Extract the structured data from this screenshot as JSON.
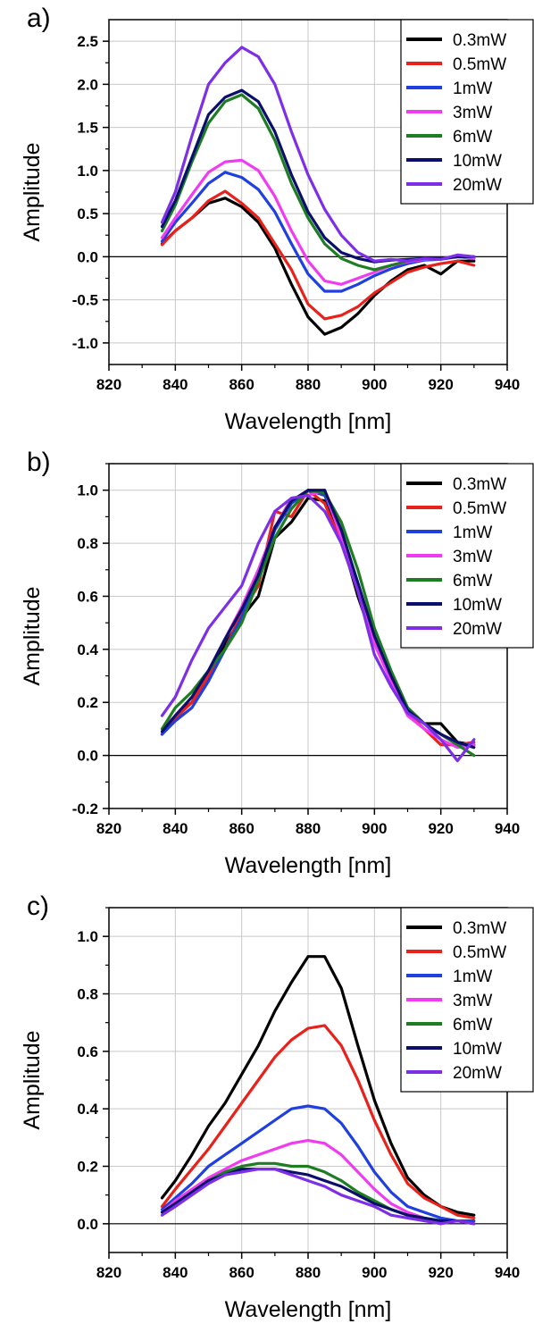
{
  "legend_labels": [
    "0.3mW",
    "0.5mW",
    "1mW",
    "3mW",
    "6mW",
    "10mW",
    "20mW"
  ],
  "series_colors": [
    "#000000",
    "#e8211b",
    "#1f3fe0",
    "#f03cf0",
    "#1e7d22",
    "#0b0f6b",
    "#7d2fe8"
  ],
  "chart_data": [
    {
      "type": "line",
      "panel_label": "a)",
      "xlabel": "Wavelength [nm]",
      "ylabel": "Amplitude",
      "xlim": [
        820,
        940
      ],
      "ylim": [
        -1.25,
        2.75
      ],
      "xticks": [
        820,
        840,
        860,
        880,
        900,
        920,
        940
      ],
      "yticks": [
        -1.0,
        -0.5,
        0.0,
        0.5,
        1.0,
        1.5,
        2.0,
        2.5
      ],
      "ytick_labels": [
        "-1.0",
        "-0.5",
        "0.0",
        "0.5",
        "1.0",
        "1.5",
        "2.0",
        "2.5"
      ],
      "grid": true,
      "legend_position": "top-right",
      "x": [
        836,
        840,
        845,
        850,
        855,
        860,
        865,
        870,
        875,
        880,
        885,
        890,
        895,
        900,
        905,
        910,
        915,
        920,
        925,
        930
      ],
      "series": [
        {
          "name": "0.3mW",
          "color": "#000000",
          "values": [
            0.15,
            0.3,
            0.45,
            0.62,
            0.68,
            0.58,
            0.4,
            0.1,
            -0.32,
            -0.7,
            -0.9,
            -0.82,
            -0.66,
            -0.45,
            -0.28,
            -0.15,
            -0.1,
            -0.2,
            -0.05,
            -0.05
          ]
        },
        {
          "name": "0.5mW",
          "color": "#e8211b",
          "values": [
            0.14,
            0.3,
            0.45,
            0.65,
            0.76,
            0.62,
            0.45,
            0.15,
            -0.15,
            -0.55,
            -0.72,
            -0.68,
            -0.58,
            -0.42,
            -0.3,
            -0.18,
            -0.12,
            -0.08,
            -0.05,
            -0.1
          ]
        },
        {
          "name": "1mW",
          "color": "#1f3fe0",
          "values": [
            0.18,
            0.4,
            0.62,
            0.85,
            0.98,
            0.92,
            0.78,
            0.52,
            0.15,
            -0.2,
            -0.4,
            -0.4,
            -0.32,
            -0.22,
            -0.14,
            -0.08,
            -0.04,
            -0.03,
            0.0,
            -0.02
          ]
        },
        {
          "name": "3mW",
          "color": "#f03cf0",
          "values": [
            0.22,
            0.45,
            0.72,
            0.98,
            1.1,
            1.12,
            1.0,
            0.7,
            0.3,
            -0.05,
            -0.28,
            -0.32,
            -0.25,
            -0.18,
            -0.1,
            -0.06,
            -0.03,
            -0.02,
            0.0,
            -0.02
          ]
        },
        {
          "name": "6mW",
          "color": "#1e7d22",
          "values": [
            0.3,
            0.6,
            1.1,
            1.55,
            1.8,
            1.88,
            1.72,
            1.35,
            0.85,
            0.45,
            0.15,
            -0.02,
            -0.1,
            -0.15,
            -0.1,
            -0.05,
            -0.02,
            -0.02,
            0.0,
            0.0
          ]
        },
        {
          "name": "10mW",
          "color": "#0b0f6b",
          "values": [
            0.35,
            0.65,
            1.15,
            1.65,
            1.85,
            1.93,
            1.8,
            1.45,
            0.95,
            0.52,
            0.22,
            0.05,
            -0.02,
            -0.06,
            -0.04,
            -0.03,
            -0.02,
            -0.02,
            0.0,
            0.0
          ]
        },
        {
          "name": "20mW",
          "color": "#7d2fe8",
          "values": [
            0.4,
            0.75,
            1.4,
            2.0,
            2.25,
            2.43,
            2.32,
            2.0,
            1.45,
            0.95,
            0.55,
            0.25,
            0.05,
            -0.05,
            -0.03,
            -0.05,
            -0.02,
            -0.03,
            0.02,
            0.0
          ]
        }
      ]
    },
    {
      "type": "line",
      "panel_label": "b)",
      "xlabel": "Wavelength [nm]",
      "ylabel": "Amplitude",
      "xlim": [
        820,
        940
      ],
      "ylim": [
        -0.2,
        1.1
      ],
      "xticks": [
        820,
        840,
        860,
        880,
        900,
        920,
        940
      ],
      "yticks": [
        -0.2,
        0.0,
        0.2,
        0.4,
        0.6,
        0.8,
        1.0
      ],
      "ytick_labels": [
        "-0.2",
        "0.0",
        "0.2",
        "0.4",
        "0.6",
        "0.8",
        "1.0"
      ],
      "grid": true,
      "legend_position": "top-right",
      "x": [
        836,
        840,
        845,
        850,
        855,
        860,
        865,
        870,
        875,
        880,
        885,
        890,
        895,
        900,
        905,
        910,
        915,
        920,
        925,
        930
      ],
      "series": [
        {
          "name": "0.3mW",
          "color": "#000000",
          "values": [
            0.08,
            0.15,
            0.2,
            0.3,
            0.42,
            0.52,
            0.6,
            0.82,
            0.88,
            0.97,
            0.96,
            0.82,
            0.6,
            0.42,
            0.3,
            0.16,
            0.12,
            0.12,
            0.05,
            0.04
          ]
        },
        {
          "name": "0.5mW",
          "color": "#e8211b",
          "values": [
            0.08,
            0.14,
            0.2,
            0.3,
            0.4,
            0.54,
            0.64,
            0.92,
            0.9,
            1.0,
            0.95,
            0.8,
            0.62,
            0.44,
            0.28,
            0.16,
            0.1,
            0.04,
            0.04,
            0.05
          ]
        },
        {
          "name": "1mW",
          "color": "#1f3fe0",
          "values": [
            0.08,
            0.13,
            0.18,
            0.28,
            0.4,
            0.52,
            0.68,
            0.85,
            0.95,
            1.0,
            0.98,
            0.84,
            0.65,
            0.45,
            0.3,
            0.18,
            0.12,
            0.08,
            0.04,
            0.04
          ]
        },
        {
          "name": "3mW",
          "color": "#f03cf0",
          "values": [
            0.1,
            0.15,
            0.22,
            0.32,
            0.44,
            0.56,
            0.7,
            0.86,
            0.97,
            0.98,
            1.0,
            0.82,
            0.62,
            0.42,
            0.28,
            0.15,
            0.1,
            0.06,
            0.03,
            0.04
          ]
        },
        {
          "name": "6mW",
          "color": "#1e7d22",
          "values": [
            0.1,
            0.18,
            0.24,
            0.32,
            0.4,
            0.5,
            0.66,
            0.82,
            0.93,
            1.0,
            0.99,
            0.88,
            0.7,
            0.48,
            0.32,
            0.18,
            0.12,
            0.08,
            0.04,
            0.0
          ]
        },
        {
          "name": "10mW",
          "color": "#0b0f6b",
          "values": [
            0.09,
            0.15,
            0.22,
            0.32,
            0.44,
            0.55,
            0.68,
            0.86,
            0.96,
            1.0,
            1.0,
            0.85,
            0.65,
            0.45,
            0.3,
            0.17,
            0.12,
            0.08,
            0.05,
            0.03
          ]
        },
        {
          "name": "20mW",
          "color": "#7d2fe8",
          "values": [
            0.15,
            0.22,
            0.36,
            0.48,
            0.56,
            0.64,
            0.8,
            0.92,
            0.97,
            0.98,
            0.92,
            0.8,
            0.62,
            0.38,
            0.26,
            0.16,
            0.12,
            0.06,
            -0.02,
            0.06
          ]
        }
      ]
    },
    {
      "type": "line",
      "panel_label": "c)",
      "xlabel": "Wavelength [nm]",
      "ylabel": "Amplitude",
      "xlim": [
        820,
        940
      ],
      "ylim": [
        -0.1,
        1.1
      ],
      "xticks": [
        820,
        840,
        860,
        880,
        900,
        920,
        940
      ],
      "yticks": [
        0.0,
        0.2,
        0.4,
        0.6,
        0.8,
        1.0
      ],
      "ytick_labels": [
        "0.0",
        "0.2",
        "0.4",
        "0.6",
        "0.8",
        "1.0"
      ],
      "grid": true,
      "legend_position": "top-right",
      "x": [
        836,
        840,
        845,
        850,
        855,
        860,
        865,
        870,
        875,
        880,
        885,
        890,
        895,
        900,
        905,
        910,
        915,
        920,
        925,
        930
      ],
      "series": [
        {
          "name": "0.3mW",
          "color": "#000000",
          "values": [
            0.09,
            0.15,
            0.24,
            0.34,
            0.42,
            0.52,
            0.62,
            0.74,
            0.84,
            0.93,
            0.93,
            0.82,
            0.62,
            0.43,
            0.28,
            0.16,
            0.1,
            0.06,
            0.04,
            0.03
          ]
        },
        {
          "name": "0.5mW",
          "color": "#e8211b",
          "values": [
            0.06,
            0.12,
            0.19,
            0.26,
            0.34,
            0.42,
            0.5,
            0.58,
            0.64,
            0.68,
            0.69,
            0.62,
            0.5,
            0.36,
            0.24,
            0.14,
            0.09,
            0.06,
            0.03,
            0.02
          ]
        },
        {
          "name": "1mW",
          "color": "#1f3fe0",
          "values": [
            0.05,
            0.09,
            0.14,
            0.2,
            0.24,
            0.28,
            0.32,
            0.36,
            0.4,
            0.41,
            0.4,
            0.35,
            0.27,
            0.18,
            0.11,
            0.06,
            0.04,
            0.02,
            0.01,
            0.01
          ]
        },
        {
          "name": "3mW",
          "color": "#f03cf0",
          "values": [
            0.04,
            0.08,
            0.12,
            0.16,
            0.19,
            0.22,
            0.24,
            0.26,
            0.28,
            0.29,
            0.28,
            0.24,
            0.18,
            0.12,
            0.07,
            0.04,
            0.02,
            0.01,
            0.01,
            0.0
          ]
        },
        {
          "name": "6mW",
          "color": "#1e7d22",
          "values": [
            0.04,
            0.07,
            0.11,
            0.15,
            0.18,
            0.2,
            0.21,
            0.21,
            0.2,
            0.2,
            0.18,
            0.15,
            0.11,
            0.08,
            0.05,
            0.03,
            0.02,
            0.01,
            0.01,
            0.0
          ]
        },
        {
          "name": "10mW",
          "color": "#0b0f6b",
          "values": [
            0.04,
            0.07,
            0.11,
            0.15,
            0.17,
            0.19,
            0.19,
            0.19,
            0.18,
            0.17,
            0.15,
            0.13,
            0.1,
            0.07,
            0.05,
            0.03,
            0.02,
            0.01,
            0.01,
            0.0
          ]
        },
        {
          "name": "20mW",
          "color": "#7d2fe8",
          "values": [
            0.03,
            0.06,
            0.1,
            0.14,
            0.17,
            0.18,
            0.19,
            0.19,
            0.17,
            0.15,
            0.13,
            0.1,
            0.08,
            0.06,
            0.03,
            0.02,
            0.01,
            0.0,
            0.01,
            0.0
          ]
        }
      ]
    }
  ]
}
